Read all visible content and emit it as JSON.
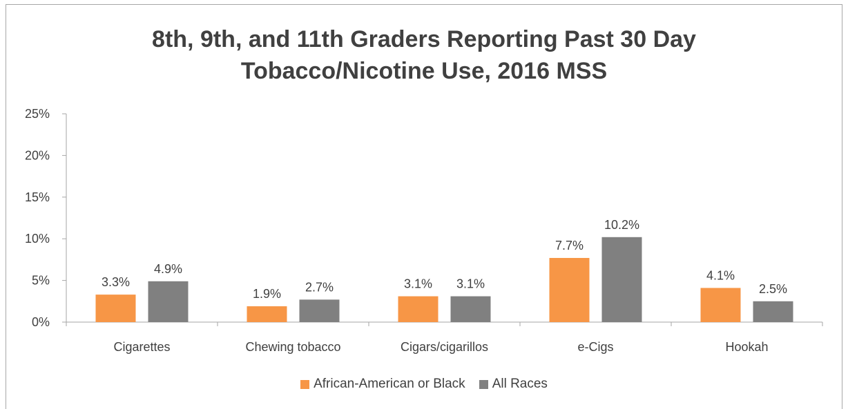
{
  "chart_data": {
    "type": "bar",
    "title": "8th, 9th, and 11th Graders Reporting Past 30 Day Tobacco/Nicotine Use, 2016 MSS",
    "title_lines": [
      "8th, 9th, and 11th Graders Reporting Past 30 Day",
      "Tobacco/Nicotine Use, 2016 MSS"
    ],
    "categories": [
      "Cigarettes",
      "Chewing tobacco",
      "Cigars/cigarillos",
      "e-Cigs",
      "Hookah"
    ],
    "series": [
      {
        "name": "African-American or Black",
        "color": "#f79646",
        "values": [
          3.3,
          1.9,
          3.1,
          7.7,
          4.1
        ],
        "labels": [
          "3.3%",
          "1.9%",
          "3.1%",
          "7.7%",
          "4.1%"
        ]
      },
      {
        "name": "All Races",
        "color": "#808080",
        "values": [
          4.9,
          2.7,
          3.1,
          10.2,
          2.5
        ],
        "labels": [
          "4.9%",
          "2.7%",
          "3.1%",
          "10.2%",
          "2.5%"
        ]
      }
    ],
    "ylim": [
      0,
      25
    ],
    "yticks": [
      0,
      5,
      10,
      15,
      20,
      25
    ],
    "ytick_labels": [
      "0%",
      "5%",
      "10%",
      "15%",
      "20%",
      "25%"
    ],
    "xlabel": "",
    "ylabel": "",
    "grid": false,
    "legend_position": "bottom"
  }
}
